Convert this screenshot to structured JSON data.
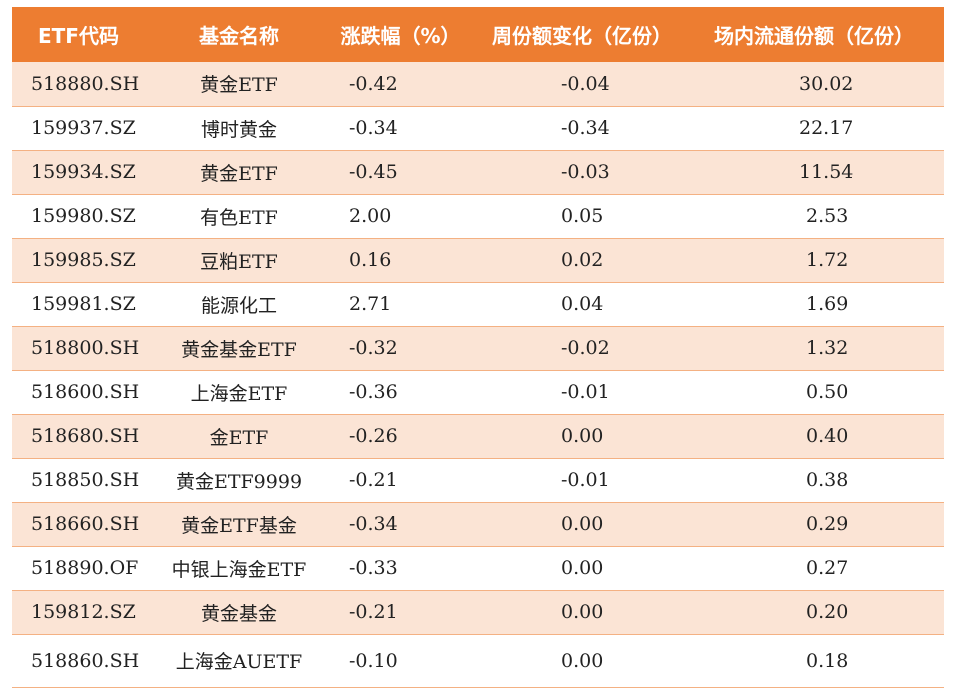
{
  "table": {
    "headers": [
      "ETF代码",
      "基金名称",
      "涨跌幅（%）",
      "周份额变化（亿份）",
      "场内流通份额（亿份）"
    ],
    "rows": [
      {
        "code": "518880.SH",
        "name": "黄金ETF",
        "change_pct": "-0.42",
        "weekly_share_change": "-0.04",
        "circulating_shares": "30.02"
      },
      {
        "code": "159937.SZ",
        "name": "博时黄金",
        "change_pct": "-0.34",
        "weekly_share_change": "-0.34",
        "circulating_shares": "22.17"
      },
      {
        "code": "159934.SZ",
        "name": "黄金ETF",
        "change_pct": "-0.45",
        "weekly_share_change": "-0.03",
        "circulating_shares": "11.54"
      },
      {
        "code": "159980.SZ",
        "name": "有色ETF",
        "change_pct": "2.00",
        "weekly_share_change": "0.05",
        "circulating_shares": "2.53"
      },
      {
        "code": "159985.SZ",
        "name": "豆粕ETF",
        "change_pct": "0.16",
        "weekly_share_change": "0.02",
        "circulating_shares": "1.72"
      },
      {
        "code": "159981.SZ",
        "name": "能源化工",
        "change_pct": "2.71",
        "weekly_share_change": "0.04",
        "circulating_shares": "1.69"
      },
      {
        "code": "518800.SH",
        "name": "黄金基金ETF",
        "change_pct": "-0.32",
        "weekly_share_change": "-0.02",
        "circulating_shares": "1.32"
      },
      {
        "code": "518600.SH",
        "name": "上海金ETF",
        "change_pct": "-0.36",
        "weekly_share_change": "-0.01",
        "circulating_shares": "0.50"
      },
      {
        "code": "518680.SH",
        "name": "金ETF",
        "change_pct": "-0.26",
        "weekly_share_change": "0.00",
        "circulating_shares": "0.40"
      },
      {
        "code": "518850.SH",
        "name": "黄金ETF9999",
        "change_pct": "-0.21",
        "weekly_share_change": "-0.01",
        "circulating_shares": "0.38"
      },
      {
        "code": "518660.SH",
        "name": "黄金ETF基金",
        "change_pct": "-0.34",
        "weekly_share_change": "0.00",
        "circulating_shares": "0.29"
      },
      {
        "code": "518890.OF",
        "name": "中银上海金ETF",
        "change_pct": "-0.33",
        "weekly_share_change": "0.00",
        "circulating_shares": "0.27"
      },
      {
        "code": "159812.SZ",
        "name": "黄金基金",
        "change_pct": "-0.21",
        "weekly_share_change": "0.00",
        "circulating_shares": "0.20"
      },
      {
        "code": "518860.SH",
        "name": "上海金AUETF",
        "change_pct": "-0.10",
        "weekly_share_change": "0.00",
        "circulating_shares": "0.18"
      }
    ]
  },
  "colors": {
    "header_bg": "#ED7D31",
    "header_text": "#FFFFFF",
    "band_odd": "#FBE4D5",
    "band_even": "#FFFFFF",
    "row_border": "#F4B183"
  }
}
